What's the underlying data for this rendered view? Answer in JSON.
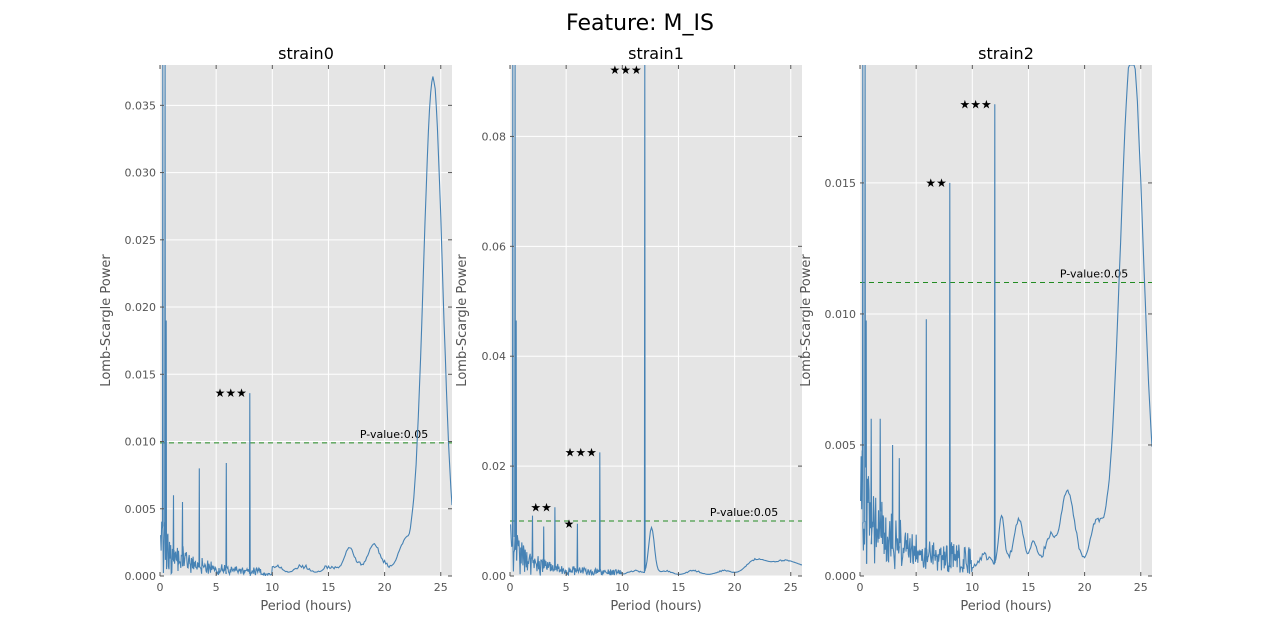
{
  "figure": {
    "suptitle": "Feature: M_IS"
  },
  "colors": {
    "line": "#4682b4",
    "plot_bg": "#e5e5e5",
    "grid": "#ffffff",
    "threshold": "#228b22"
  },
  "chart_data": [
    {
      "type": "line",
      "title": "strain0",
      "xlabel": "Period (hours)",
      "ylabel": "Lomb-Scargle Power",
      "xlim": [
        0,
        26
      ],
      "ylim": [
        0,
        0.038
      ],
      "xticks": [
        0,
        5,
        10,
        15,
        20,
        25
      ],
      "yticks": [
        0.0,
        0.005,
        0.01,
        0.015,
        0.02,
        0.025,
        0.03,
        0.035
      ],
      "ytick_labels": [
        "0.000",
        "0.005",
        "0.010",
        "0.015",
        "0.020",
        "0.025",
        "0.030",
        "0.035"
      ],
      "grid": true,
      "threshold": {
        "y": 0.0099,
        "label": "P-value:0.05",
        "label_x": 17.8
      },
      "peaks": [
        {
          "x": 8.0,
          "y": 0.0136,
          "stars": "★★★"
        }
      ],
      "series": [
        {
          "x": [],
          "y": []
        }
      ]
    },
    {
      "type": "line",
      "title": "strain1",
      "xlabel": "Period (hours)",
      "ylabel": "Lomb-Scargle Power",
      "xlim": [
        0,
        26
      ],
      "ylim": [
        0,
        0.093
      ],
      "xticks": [
        0,
        5,
        10,
        15,
        20,
        25
      ],
      "yticks": [
        0.0,
        0.02,
        0.04,
        0.06,
        0.08
      ],
      "ytick_labels": [
        "0.00",
        "0.02",
        "0.04",
        "0.06",
        "0.08"
      ],
      "grid": true,
      "threshold": {
        "y": 0.01,
        "label": "P-value:0.05",
        "label_x": 17.8
      },
      "peaks": [
        {
          "x": 4.0,
          "y": 0.0125,
          "stars": "★★"
        },
        {
          "x": 6.0,
          "y": 0.0095,
          "stars": "★"
        },
        {
          "x": 8.0,
          "y": 0.0225,
          "stars": "★★★"
        },
        {
          "x": 12.0,
          "y": 0.0935,
          "stars": "★★★"
        }
      ],
      "series": [
        {
          "x": [],
          "y": []
        }
      ]
    },
    {
      "type": "line",
      "title": "strain2",
      "xlabel": "Period (hours)",
      "ylabel": "Lomb-Scargle Power",
      "xlim": [
        0,
        26
      ],
      "ylim": [
        0,
        0.0195
      ],
      "xticks": [
        0,
        5,
        10,
        15,
        20,
        25
      ],
      "yticks": [
        0.0,
        0.005,
        0.01,
        0.015
      ],
      "ytick_labels": [
        "0.000",
        "0.005",
        "0.010",
        "0.015"
      ],
      "grid": true,
      "threshold": {
        "y": 0.0112,
        "label": "P-value:0.05",
        "label_x": 17.8
      },
      "peaks": [
        {
          "x": 8.0,
          "y": 0.015,
          "stars": "★★"
        },
        {
          "x": 12.0,
          "y": 0.018,
          "stars": "★★★"
        }
      ],
      "series": [
        {
          "x": [],
          "y": []
        }
      ]
    }
  ]
}
